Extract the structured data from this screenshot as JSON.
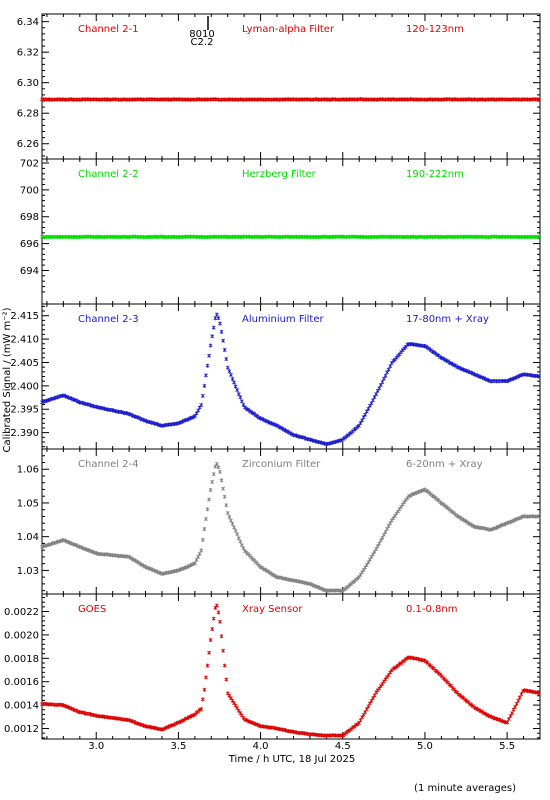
{
  "xlabel": "Time / h UTC, 18 Jul 2025",
  "ylabel": "Calibrated Signal / (mW m⁻²)",
  "footnote": "(1 minute averages)",
  "marker_labels": [
    "8010",
    "C2.2"
  ],
  "xlim": [
    2.67,
    5.7
  ],
  "xticks": [
    "3.0",
    "3.5",
    "4.0",
    "4.5",
    "5.0",
    "5.5"
  ],
  "chart_data": [
    {
      "type": "scatter",
      "labels": [
        "Channel 2-1",
        "Lyman-alpha Filter",
        "120-123nm"
      ],
      "color": "#dd0000",
      "ylim": [
        6.25,
        6.345
      ],
      "yticks": [
        "6.26",
        "6.28",
        "6.30",
        "6.32",
        "6.34"
      ],
      "x": [
        2.67,
        3.0,
        3.5,
        4.0,
        4.5,
        5.0,
        5.5,
        5.7
      ],
      "y": [
        6.289,
        6.289,
        6.289,
        6.289,
        6.289,
        6.289,
        6.289,
        6.289
      ]
    },
    {
      "type": "scatter",
      "labels": [
        "Channel 2-2",
        "Herzberg Filter",
        "190-222nm"
      ],
      "color": "#00dd00",
      "ylim": [
        691.5,
        702.3
      ],
      "yticks": [
        "694",
        "696",
        "698",
        "700",
        "702"
      ],
      "x": [
        2.67,
        3.0,
        3.5,
        4.0,
        4.5,
        5.0,
        5.5,
        5.7
      ],
      "y": [
        696.5,
        696.5,
        696.5,
        696.5,
        696.5,
        696.5,
        696.5,
        696.5
      ]
    },
    {
      "type": "scatter",
      "labels": [
        "Channel 2-3",
        "Aluminium Filter",
        "17-80nm + Xray"
      ],
      "color": "#1a1acc",
      "ylim": [
        2.3865,
        2.4175
      ],
      "yticks": [
        "2.390",
        "2.395",
        "2.400",
        "2.405",
        "2.410",
        "2.415"
      ],
      "x": [
        2.67,
        2.8,
        2.9,
        3.0,
        3.2,
        3.3,
        3.4,
        3.5,
        3.6,
        3.64,
        3.66,
        3.7,
        3.73,
        3.75,
        3.8,
        3.9,
        4.0,
        4.1,
        4.2,
        4.3,
        4.4,
        4.5,
        4.6,
        4.7,
        4.8,
        4.9,
        5.0,
        5.1,
        5.2,
        5.3,
        5.4,
        5.5,
        5.6,
        5.7
      ],
      "y": [
        2.3965,
        2.398,
        2.3965,
        2.3955,
        2.394,
        2.3925,
        2.3915,
        2.392,
        2.3935,
        2.396,
        2.4005,
        2.4095,
        2.4155,
        2.414,
        2.404,
        2.3955,
        2.393,
        2.3915,
        2.3895,
        2.3885,
        2.3875,
        2.3885,
        2.3915,
        2.398,
        2.405,
        2.409,
        2.4085,
        2.406,
        2.404,
        2.4025,
        2.401,
        2.401,
        2.4025,
        2.402
      ]
    },
    {
      "type": "scatter",
      "labels": [
        "Channel 2-4",
        "Zirconium Filter",
        "6-20nm + Xray"
      ],
      "color": "#808080",
      "ylim": [
        1.023,
        1.066
      ],
      "yticks": [
        "1.03",
        "1.04",
        "1.05",
        "1.06"
      ],
      "x": [
        2.67,
        2.8,
        2.9,
        3.0,
        3.2,
        3.3,
        3.4,
        3.5,
        3.6,
        3.64,
        3.66,
        3.7,
        3.73,
        3.75,
        3.8,
        3.9,
        4.0,
        4.1,
        4.2,
        4.3,
        4.4,
        4.5,
        4.6,
        4.7,
        4.8,
        4.9,
        5.0,
        5.1,
        5.2,
        5.3,
        5.4,
        5.5,
        5.6,
        5.7
      ],
      "y": [
        1.037,
        1.039,
        1.037,
        1.035,
        1.034,
        1.031,
        1.029,
        1.03,
        1.032,
        1.036,
        1.043,
        1.055,
        1.062,
        1.06,
        1.047,
        1.036,
        1.031,
        1.028,
        1.027,
        1.026,
        1.024,
        1.024,
        1.028,
        1.036,
        1.045,
        1.052,
        1.054,
        1.05,
        1.046,
        1.043,
        1.042,
        1.044,
        1.046,
        1.046
      ]
    },
    {
      "type": "scatter",
      "labels": [
        "GOES",
        "Xray Sensor",
        "0.1-0.8nm"
      ],
      "color": "#dd0000",
      "ylim": [
        0.00111,
        0.00235
      ],
      "yticks": [
        "0.0012",
        "0.0014",
        "0.0016",
        "0.0018",
        "0.0020",
        "0.0022"
      ],
      "x": [
        2.67,
        2.8,
        2.9,
        3.0,
        3.2,
        3.3,
        3.4,
        3.5,
        3.6,
        3.64,
        3.66,
        3.7,
        3.73,
        3.75,
        3.8,
        3.9,
        4.0,
        4.1,
        4.2,
        4.3,
        4.4,
        4.5,
        4.6,
        4.7,
        4.8,
        4.9,
        5.0,
        5.1,
        5.2,
        5.3,
        5.4,
        5.5,
        5.6,
        5.7
      ],
      "y": [
        0.00141,
        0.0014,
        0.00134,
        0.00131,
        0.00127,
        0.00122,
        0.00119,
        0.00125,
        0.00132,
        0.00137,
        0.00155,
        0.002,
        0.00228,
        0.00215,
        0.0015,
        0.00128,
        0.00122,
        0.0012,
        0.00117,
        0.00115,
        0.00114,
        0.00114,
        0.00125,
        0.0015,
        0.0017,
        0.00181,
        0.00178,
        0.00165,
        0.0015,
        0.00138,
        0.0013,
        0.00125,
        0.00153,
        0.0015
      ]
    }
  ]
}
